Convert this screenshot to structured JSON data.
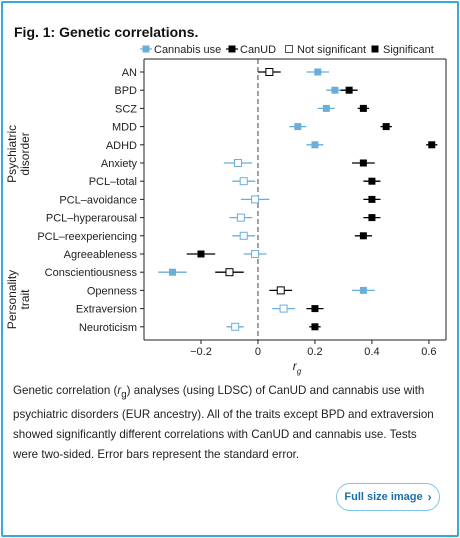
{
  "figure": {
    "title": "Fig. 1: Genetic correlations.",
    "caption_parts": [
      "Genetic correlation (",
      "r",
      "g",
      ") analyses (using LDSC) of CanUD and cannabis use with psychiatric disorders (EUR ancestry). All of the traits except BPD and extraversion showed significantly different correlations with CanUD and cannabis use. Tests were two-sided. Error bars represent the standard error."
    ],
    "full_size_label": "Full size image",
    "full_size_icon": "chevron-right-icon"
  },
  "chart_data": {
    "type": "scatter",
    "orientation": "horizontal",
    "xlabel": "r",
    "xlabel_sub": "g",
    "xlim": [
      -0.4,
      0.66
    ],
    "xticks": [
      -0.2,
      0,
      0.2,
      0.4,
      0.6
    ],
    "xtick_labels": [
      "−0.2",
      "0",
      "0.2",
      "0.4",
      "0.6"
    ],
    "reference_line": 0,
    "grid": false,
    "legend_position": "top",
    "legend": [
      {
        "label": "Cannabis use",
        "marker": "square",
        "color": "#6aaedb"
      },
      {
        "label": "CanUD",
        "marker": "square",
        "color": "#000000"
      },
      {
        "label": "Not significant",
        "marker": "open-square",
        "color": "#555555"
      },
      {
        "label": "Significant",
        "marker": "square",
        "color": "#000000"
      }
    ],
    "groups": [
      {
        "label": "Psychiatric disorder",
        "from": 0,
        "to": 10
      },
      {
        "label": "Personality trait",
        "from": 11,
        "to": 15
      }
    ],
    "traits": [
      "AN",
      "BPD",
      "SCZ",
      "MDD",
      "ADHD",
      "Anxiety",
      "PCL–total",
      "PCL–avoidance",
      "PCL–hyperarousal",
      "PCL–reexperiencing",
      "Agreeableness",
      "Conscientiousness",
      "Openness",
      "Extraversion",
      "Neuroticism"
    ],
    "series": [
      {
        "name": "Cannabis use",
        "color": "#6aaedb",
        "values": [
          0.21,
          0.27,
          0.24,
          0.14,
          0.2,
          -0.07,
          -0.05,
          -0.01,
          -0.06,
          -0.05,
          -0.01,
          -0.3,
          0.37,
          0.09,
          -0.08
        ],
        "se": [
          0.04,
          0.03,
          0.03,
          0.03,
          0.03,
          0.05,
          0.04,
          0.05,
          0.04,
          0.04,
          0.04,
          0.05,
          0.04,
          0.04,
          0.03
        ],
        "significant": [
          true,
          true,
          true,
          true,
          true,
          false,
          false,
          false,
          false,
          false,
          false,
          true,
          true,
          false,
          false
        ]
      },
      {
        "name": "CanUD",
        "color": "#000000",
        "values": [
          0.04,
          0.32,
          0.37,
          0.45,
          0.61,
          0.37,
          0.4,
          0.4,
          0.4,
          0.37,
          -0.2,
          -0.1,
          0.08,
          0.2,
          0.2
        ],
        "se": [
          0.04,
          0.03,
          0.02,
          0.02,
          0.02,
          0.04,
          0.03,
          0.03,
          0.03,
          0.03,
          0.05,
          0.05,
          0.04,
          0.03,
          0.02
        ],
        "significant": [
          false,
          true,
          true,
          true,
          true,
          true,
          true,
          true,
          true,
          true,
          true,
          false,
          false,
          true,
          true
        ]
      }
    ]
  }
}
